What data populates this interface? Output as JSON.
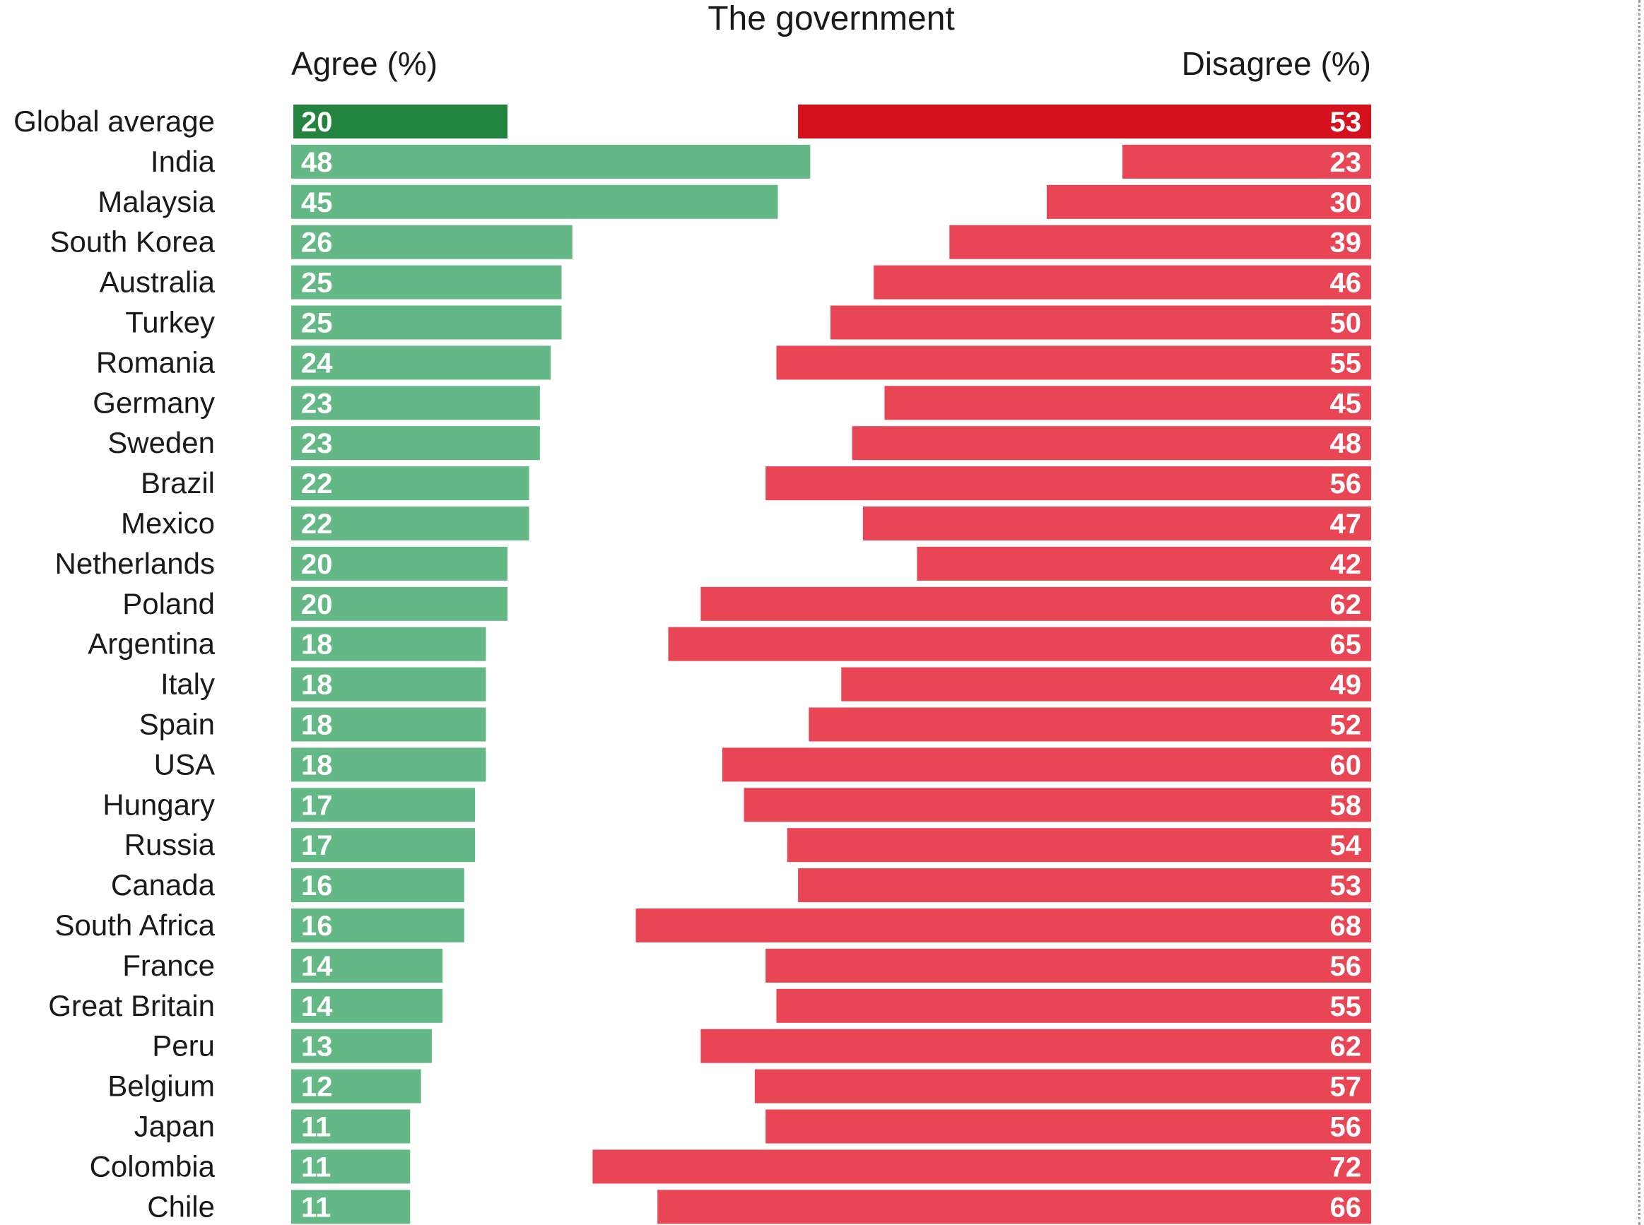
{
  "chart_data": {
    "type": "bar",
    "title": "The government",
    "left_header": "Agree (%)",
    "right_header": "Disagree (%)",
    "colors": {
      "agree": "#63b886",
      "agree_highlight": "#22843f",
      "disagree": "#e84555",
      "disagree_highlight": "#d4121d"
    },
    "highlight_category": "Global average",
    "xlim": [
      0,
      100
    ],
    "grid": false,
    "categories": [
      "Global average",
      "India",
      "Malaysia",
      "South Korea",
      "Australia",
      "Turkey",
      "Romania",
      "Germany",
      "Sweden",
      "Brazil",
      "Mexico",
      "Netherlands",
      "Poland",
      "Argentina",
      "Italy",
      "Spain",
      "USA",
      "Hungary",
      "Russia",
      "Canada",
      "South Africa",
      "France",
      "Great Britain",
      "Peru",
      "Belgium",
      "Japan",
      "Colombia",
      "Chile"
    ],
    "series": [
      {
        "name": "Agree (%)",
        "values": [
          20,
          48,
          45,
          26,
          25,
          25,
          24,
          23,
          23,
          22,
          22,
          20,
          20,
          18,
          18,
          18,
          18,
          17,
          17,
          16,
          16,
          14,
          14,
          13,
          12,
          11,
          11,
          11
        ]
      },
      {
        "name": "Disagree (%)",
        "values": [
          53,
          23,
          30,
          39,
          46,
          50,
          55,
          45,
          48,
          56,
          47,
          42,
          62,
          65,
          49,
          52,
          60,
          58,
          54,
          53,
          68,
          56,
          55,
          62,
          57,
          56,
          72,
          66
        ]
      }
    ]
  }
}
